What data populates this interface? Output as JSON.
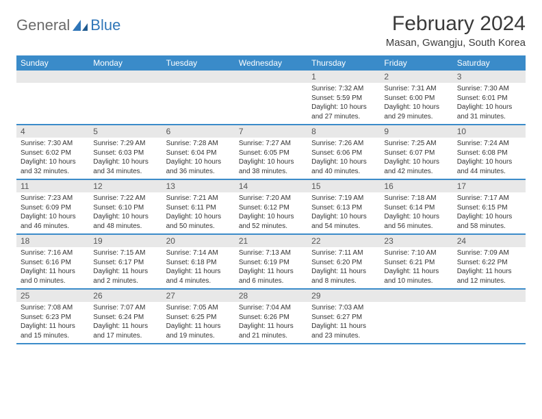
{
  "logo": {
    "general": "General",
    "blue": "Blue"
  },
  "header": {
    "month_title": "February 2024",
    "location": "Masan, Gwangju, South Korea"
  },
  "colors": {
    "header_bar": "#3a8bc9",
    "daynum_bg": "#e8e8e8",
    "border": "#3a8bc9",
    "text": "#333333",
    "logo_gray": "#6a6a6a",
    "logo_blue": "#2f76b8"
  },
  "weekdays": [
    "Sunday",
    "Monday",
    "Tuesday",
    "Wednesday",
    "Thursday",
    "Friday",
    "Saturday"
  ],
  "weeks": [
    [
      null,
      null,
      null,
      null,
      {
        "n": "1",
        "sr": "Sunrise: 7:32 AM",
        "ss": "Sunset: 5:59 PM",
        "d1": "Daylight: 10 hours",
        "d2": "and 27 minutes."
      },
      {
        "n": "2",
        "sr": "Sunrise: 7:31 AM",
        "ss": "Sunset: 6:00 PM",
        "d1": "Daylight: 10 hours",
        "d2": "and 29 minutes."
      },
      {
        "n": "3",
        "sr": "Sunrise: 7:30 AM",
        "ss": "Sunset: 6:01 PM",
        "d1": "Daylight: 10 hours",
        "d2": "and 31 minutes."
      }
    ],
    [
      {
        "n": "4",
        "sr": "Sunrise: 7:30 AM",
        "ss": "Sunset: 6:02 PM",
        "d1": "Daylight: 10 hours",
        "d2": "and 32 minutes."
      },
      {
        "n": "5",
        "sr": "Sunrise: 7:29 AM",
        "ss": "Sunset: 6:03 PM",
        "d1": "Daylight: 10 hours",
        "d2": "and 34 minutes."
      },
      {
        "n": "6",
        "sr": "Sunrise: 7:28 AM",
        "ss": "Sunset: 6:04 PM",
        "d1": "Daylight: 10 hours",
        "d2": "and 36 minutes."
      },
      {
        "n": "7",
        "sr": "Sunrise: 7:27 AM",
        "ss": "Sunset: 6:05 PM",
        "d1": "Daylight: 10 hours",
        "d2": "and 38 minutes."
      },
      {
        "n": "8",
        "sr": "Sunrise: 7:26 AM",
        "ss": "Sunset: 6:06 PM",
        "d1": "Daylight: 10 hours",
        "d2": "and 40 minutes."
      },
      {
        "n": "9",
        "sr": "Sunrise: 7:25 AM",
        "ss": "Sunset: 6:07 PM",
        "d1": "Daylight: 10 hours",
        "d2": "and 42 minutes."
      },
      {
        "n": "10",
        "sr": "Sunrise: 7:24 AM",
        "ss": "Sunset: 6:08 PM",
        "d1": "Daylight: 10 hours",
        "d2": "and 44 minutes."
      }
    ],
    [
      {
        "n": "11",
        "sr": "Sunrise: 7:23 AM",
        "ss": "Sunset: 6:09 PM",
        "d1": "Daylight: 10 hours",
        "d2": "and 46 minutes."
      },
      {
        "n": "12",
        "sr": "Sunrise: 7:22 AM",
        "ss": "Sunset: 6:10 PM",
        "d1": "Daylight: 10 hours",
        "d2": "and 48 minutes."
      },
      {
        "n": "13",
        "sr": "Sunrise: 7:21 AM",
        "ss": "Sunset: 6:11 PM",
        "d1": "Daylight: 10 hours",
        "d2": "and 50 minutes."
      },
      {
        "n": "14",
        "sr": "Sunrise: 7:20 AM",
        "ss": "Sunset: 6:12 PM",
        "d1": "Daylight: 10 hours",
        "d2": "and 52 minutes."
      },
      {
        "n": "15",
        "sr": "Sunrise: 7:19 AM",
        "ss": "Sunset: 6:13 PM",
        "d1": "Daylight: 10 hours",
        "d2": "and 54 minutes."
      },
      {
        "n": "16",
        "sr": "Sunrise: 7:18 AM",
        "ss": "Sunset: 6:14 PM",
        "d1": "Daylight: 10 hours",
        "d2": "and 56 minutes."
      },
      {
        "n": "17",
        "sr": "Sunrise: 7:17 AM",
        "ss": "Sunset: 6:15 PM",
        "d1": "Daylight: 10 hours",
        "d2": "and 58 minutes."
      }
    ],
    [
      {
        "n": "18",
        "sr": "Sunrise: 7:16 AM",
        "ss": "Sunset: 6:16 PM",
        "d1": "Daylight: 11 hours",
        "d2": "and 0 minutes."
      },
      {
        "n": "19",
        "sr": "Sunrise: 7:15 AM",
        "ss": "Sunset: 6:17 PM",
        "d1": "Daylight: 11 hours",
        "d2": "and 2 minutes."
      },
      {
        "n": "20",
        "sr": "Sunrise: 7:14 AM",
        "ss": "Sunset: 6:18 PM",
        "d1": "Daylight: 11 hours",
        "d2": "and 4 minutes."
      },
      {
        "n": "21",
        "sr": "Sunrise: 7:13 AM",
        "ss": "Sunset: 6:19 PM",
        "d1": "Daylight: 11 hours",
        "d2": "and 6 minutes."
      },
      {
        "n": "22",
        "sr": "Sunrise: 7:11 AM",
        "ss": "Sunset: 6:20 PM",
        "d1": "Daylight: 11 hours",
        "d2": "and 8 minutes."
      },
      {
        "n": "23",
        "sr": "Sunrise: 7:10 AM",
        "ss": "Sunset: 6:21 PM",
        "d1": "Daylight: 11 hours",
        "d2": "and 10 minutes."
      },
      {
        "n": "24",
        "sr": "Sunrise: 7:09 AM",
        "ss": "Sunset: 6:22 PM",
        "d1": "Daylight: 11 hours",
        "d2": "and 12 minutes."
      }
    ],
    [
      {
        "n": "25",
        "sr": "Sunrise: 7:08 AM",
        "ss": "Sunset: 6:23 PM",
        "d1": "Daylight: 11 hours",
        "d2": "and 15 minutes."
      },
      {
        "n": "26",
        "sr": "Sunrise: 7:07 AM",
        "ss": "Sunset: 6:24 PM",
        "d1": "Daylight: 11 hours",
        "d2": "and 17 minutes."
      },
      {
        "n": "27",
        "sr": "Sunrise: 7:05 AM",
        "ss": "Sunset: 6:25 PM",
        "d1": "Daylight: 11 hours",
        "d2": "and 19 minutes."
      },
      {
        "n": "28",
        "sr": "Sunrise: 7:04 AM",
        "ss": "Sunset: 6:26 PM",
        "d1": "Daylight: 11 hours",
        "d2": "and 21 minutes."
      },
      {
        "n": "29",
        "sr": "Sunrise: 7:03 AM",
        "ss": "Sunset: 6:27 PM",
        "d1": "Daylight: 11 hours",
        "d2": "and 23 minutes."
      },
      null,
      null
    ]
  ]
}
